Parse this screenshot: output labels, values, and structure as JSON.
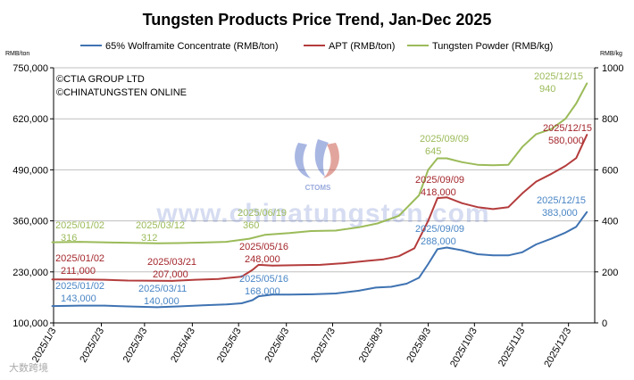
{
  "chart_data": {
    "type": "line",
    "title": "Tungsten Products Price Trend, Jan-Dec 2025",
    "left_axis_unit": "RMB/ton",
    "right_axis_unit": "RMB/kg",
    "left_ylim": [
      100000,
      750000
    ],
    "left_ticks": [
      "750,000",
      "620,000",
      "490,000",
      "360,000",
      "230,000",
      "100,000"
    ],
    "left_tick_values": [
      750000,
      620000,
      490000,
      360000,
      230000,
      100000
    ],
    "right_ylim": [
      0,
      1000
    ],
    "right_ticks": [
      "1000",
      "800",
      "600",
      "400",
      "200",
      "0"
    ],
    "right_tick_values": [
      1000,
      800,
      600,
      400,
      200,
      0
    ],
    "x_range": [
      "2025/1/3",
      "2025/12/20"
    ],
    "x_ticks": [
      "2025/1/3",
      "2025/2/3",
      "2025/3/3",
      "2025/4/3",
      "2025/5/3",
      "2025/6/3",
      "2025/7/3",
      "2025/8/3",
      "2025/9/3",
      "2025/10/3",
      "2025/11/3",
      "2025/12/3"
    ],
    "grid": "horizontal",
    "legend_position": "top",
    "watermark_text": [
      "©CTIA GROUP LTD",
      "©CHINATUNGSTEN ONLINE"
    ],
    "background_watermark": "www.chinatungsten.com",
    "logo_text": "CTOMS",
    "corner_mark": "大数跨境",
    "series": [
      {
        "name": "65% Wolframite Concentrate (RMB/ton)",
        "axis": "left",
        "color": "#3f73b2",
        "points": [
          [
            "2025/1/2",
            143000
          ],
          [
            "2025/1/20",
            144000
          ],
          [
            "2025/2/5",
            144000
          ],
          [
            "2025/2/20",
            142000
          ],
          [
            "2025/3/11",
            140000
          ],
          [
            "2025/3/25",
            142000
          ],
          [
            "2025/4/10",
            145000
          ],
          [
            "2025/4/25",
            147000
          ],
          [
            "2025/5/5",
            150000
          ],
          [
            "2025/5/12",
            158000
          ],
          [
            "2025/5/16",
            168000
          ],
          [
            "2025/5/25",
            172000
          ],
          [
            "2025/6/5",
            172000
          ],
          [
            "2025/6/20",
            173000
          ],
          [
            "2025/7/5",
            175000
          ],
          [
            "2025/7/20",
            182000
          ],
          [
            "2025/7/31",
            190000
          ],
          [
            "2025/8/10",
            192000
          ],
          [
            "2025/8/20",
            200000
          ],
          [
            "2025/8/28",
            215000
          ],
          [
            "2025/9/3",
            250000
          ],
          [
            "2025/9/9",
            288000
          ],
          [
            "2025/9/15",
            292000
          ],
          [
            "2025/9/25",
            285000
          ],
          [
            "2025/10/5",
            275000
          ],
          [
            "2025/10/15",
            272000
          ],
          [
            "2025/10/25",
            272000
          ],
          [
            "2025/11/3",
            280000
          ],
          [
            "2025/11/12",
            300000
          ],
          [
            "2025/11/22",
            315000
          ],
          [
            "2025/12/1",
            330000
          ],
          [
            "2025/12/8",
            345000
          ],
          [
            "2025/12/15",
            383000
          ]
        ]
      },
      {
        "name": "APT (RMB/ton)",
        "axis": "left",
        "color": "#b43c3c",
        "points": [
          [
            "2025/1/2",
            211000
          ],
          [
            "2025/1/20",
            211000
          ],
          [
            "2025/2/5",
            210000
          ],
          [
            "2025/2/20",
            208000
          ],
          [
            "2025/3/21",
            207000
          ],
          [
            "2025/4/5",
            210000
          ],
          [
            "2025/4/20",
            212000
          ],
          [
            "2025/5/5",
            218000
          ],
          [
            "2025/5/12",
            235000
          ],
          [
            "2025/5/16",
            248000
          ],
          [
            "2025/5/25",
            246000
          ],
          [
            "2025/6/10",
            247000
          ],
          [
            "2025/6/25",
            248000
          ],
          [
            "2025/7/10",
            252000
          ],
          [
            "2025/7/25",
            258000
          ],
          [
            "2025/8/5",
            262000
          ],
          [
            "2025/8/15",
            270000
          ],
          [
            "2025/8/25",
            290000
          ],
          [
            "2025/9/3",
            360000
          ],
          [
            "2025/9/9",
            418000
          ],
          [
            "2025/9/15",
            420000
          ],
          [
            "2025/9/25",
            405000
          ],
          [
            "2025/10/5",
            395000
          ],
          [
            "2025/10/15",
            390000
          ],
          [
            "2025/10/25",
            395000
          ],
          [
            "2025/11/3",
            430000
          ],
          [
            "2025/11/12",
            460000
          ],
          [
            "2025/11/22",
            480000
          ],
          [
            "2025/12/1",
            500000
          ],
          [
            "2025/12/8",
            520000
          ],
          [
            "2025/12/15",
            580000
          ]
        ]
      },
      {
        "name": "Tungsten Powder (RMB/kg)",
        "axis": "right",
        "color": "#9bbb59",
        "points": [
          [
            "2025/1/2",
            316
          ],
          [
            "2025/1/20",
            318
          ],
          [
            "2025/2/10",
            315
          ],
          [
            "2025/3/12",
            312
          ],
          [
            "2025/3/25",
            313
          ],
          [
            "2025/4/10",
            315
          ],
          [
            "2025/4/25",
            318
          ],
          [
            "2025/5/10",
            330
          ],
          [
            "2025/5/20",
            345
          ],
          [
            "2025/6/5",
            352
          ],
          [
            "2025/6/19",
            360
          ],
          [
            "2025/7/5",
            362
          ],
          [
            "2025/7/20",
            375
          ],
          [
            "2025/8/1",
            390
          ],
          [
            "2025/8/15",
            420
          ],
          [
            "2025/8/28",
            500
          ],
          [
            "2025/9/3",
            600
          ],
          [
            "2025/9/9",
            645
          ],
          [
            "2025/9/15",
            645
          ],
          [
            "2025/9/25",
            630
          ],
          [
            "2025/10/5",
            620
          ],
          [
            "2025/10/15",
            618
          ],
          [
            "2025/10/25",
            620
          ],
          [
            "2025/11/3",
            690
          ],
          [
            "2025/11/12",
            740
          ],
          [
            "2025/11/22",
            760
          ],
          [
            "2025/12/1",
            800
          ],
          [
            "2025/12/8",
            860
          ],
          [
            "2025/12/15",
            940
          ]
        ]
      }
    ],
    "annotations": [
      {
        "series": 2,
        "lines": [
          "2025/01/02",
          "316"
        ]
      },
      {
        "series": 2,
        "lines": [
          "2025/03/12",
          "312"
        ]
      },
      {
        "series": 2,
        "lines": [
          "2025/06/19",
          "360"
        ]
      },
      {
        "series": 2,
        "lines": [
          "2025/09/09",
          "645"
        ]
      },
      {
        "series": 2,
        "lines": [
          "2025/12/15",
          "940"
        ]
      },
      {
        "series": 1,
        "lines": [
          "2025/01/02",
          "211,000"
        ]
      },
      {
        "series": 1,
        "lines": [
          "2025/03/21",
          "207,000"
        ]
      },
      {
        "series": 1,
        "lines": [
          "2025/05/16",
          "248,000"
        ]
      },
      {
        "series": 1,
        "lines": [
          "2025/09/09",
          "418,000"
        ]
      },
      {
        "series": 1,
        "lines": [
          "2025/12/15",
          "580,000"
        ]
      },
      {
        "series": 0,
        "lines": [
          "2025/01/02",
          "143,000"
        ]
      },
      {
        "series": 0,
        "lines": [
          "2025/03/11",
          "140,000"
        ]
      },
      {
        "series": 0,
        "lines": [
          "2025/05/16",
          "168,000"
        ]
      },
      {
        "series": 0,
        "lines": [
          "2025/09/09",
          "288,000"
        ]
      },
      {
        "series": 0,
        "lines": [
          "2025/12/15",
          "383,000"
        ]
      }
    ]
  }
}
